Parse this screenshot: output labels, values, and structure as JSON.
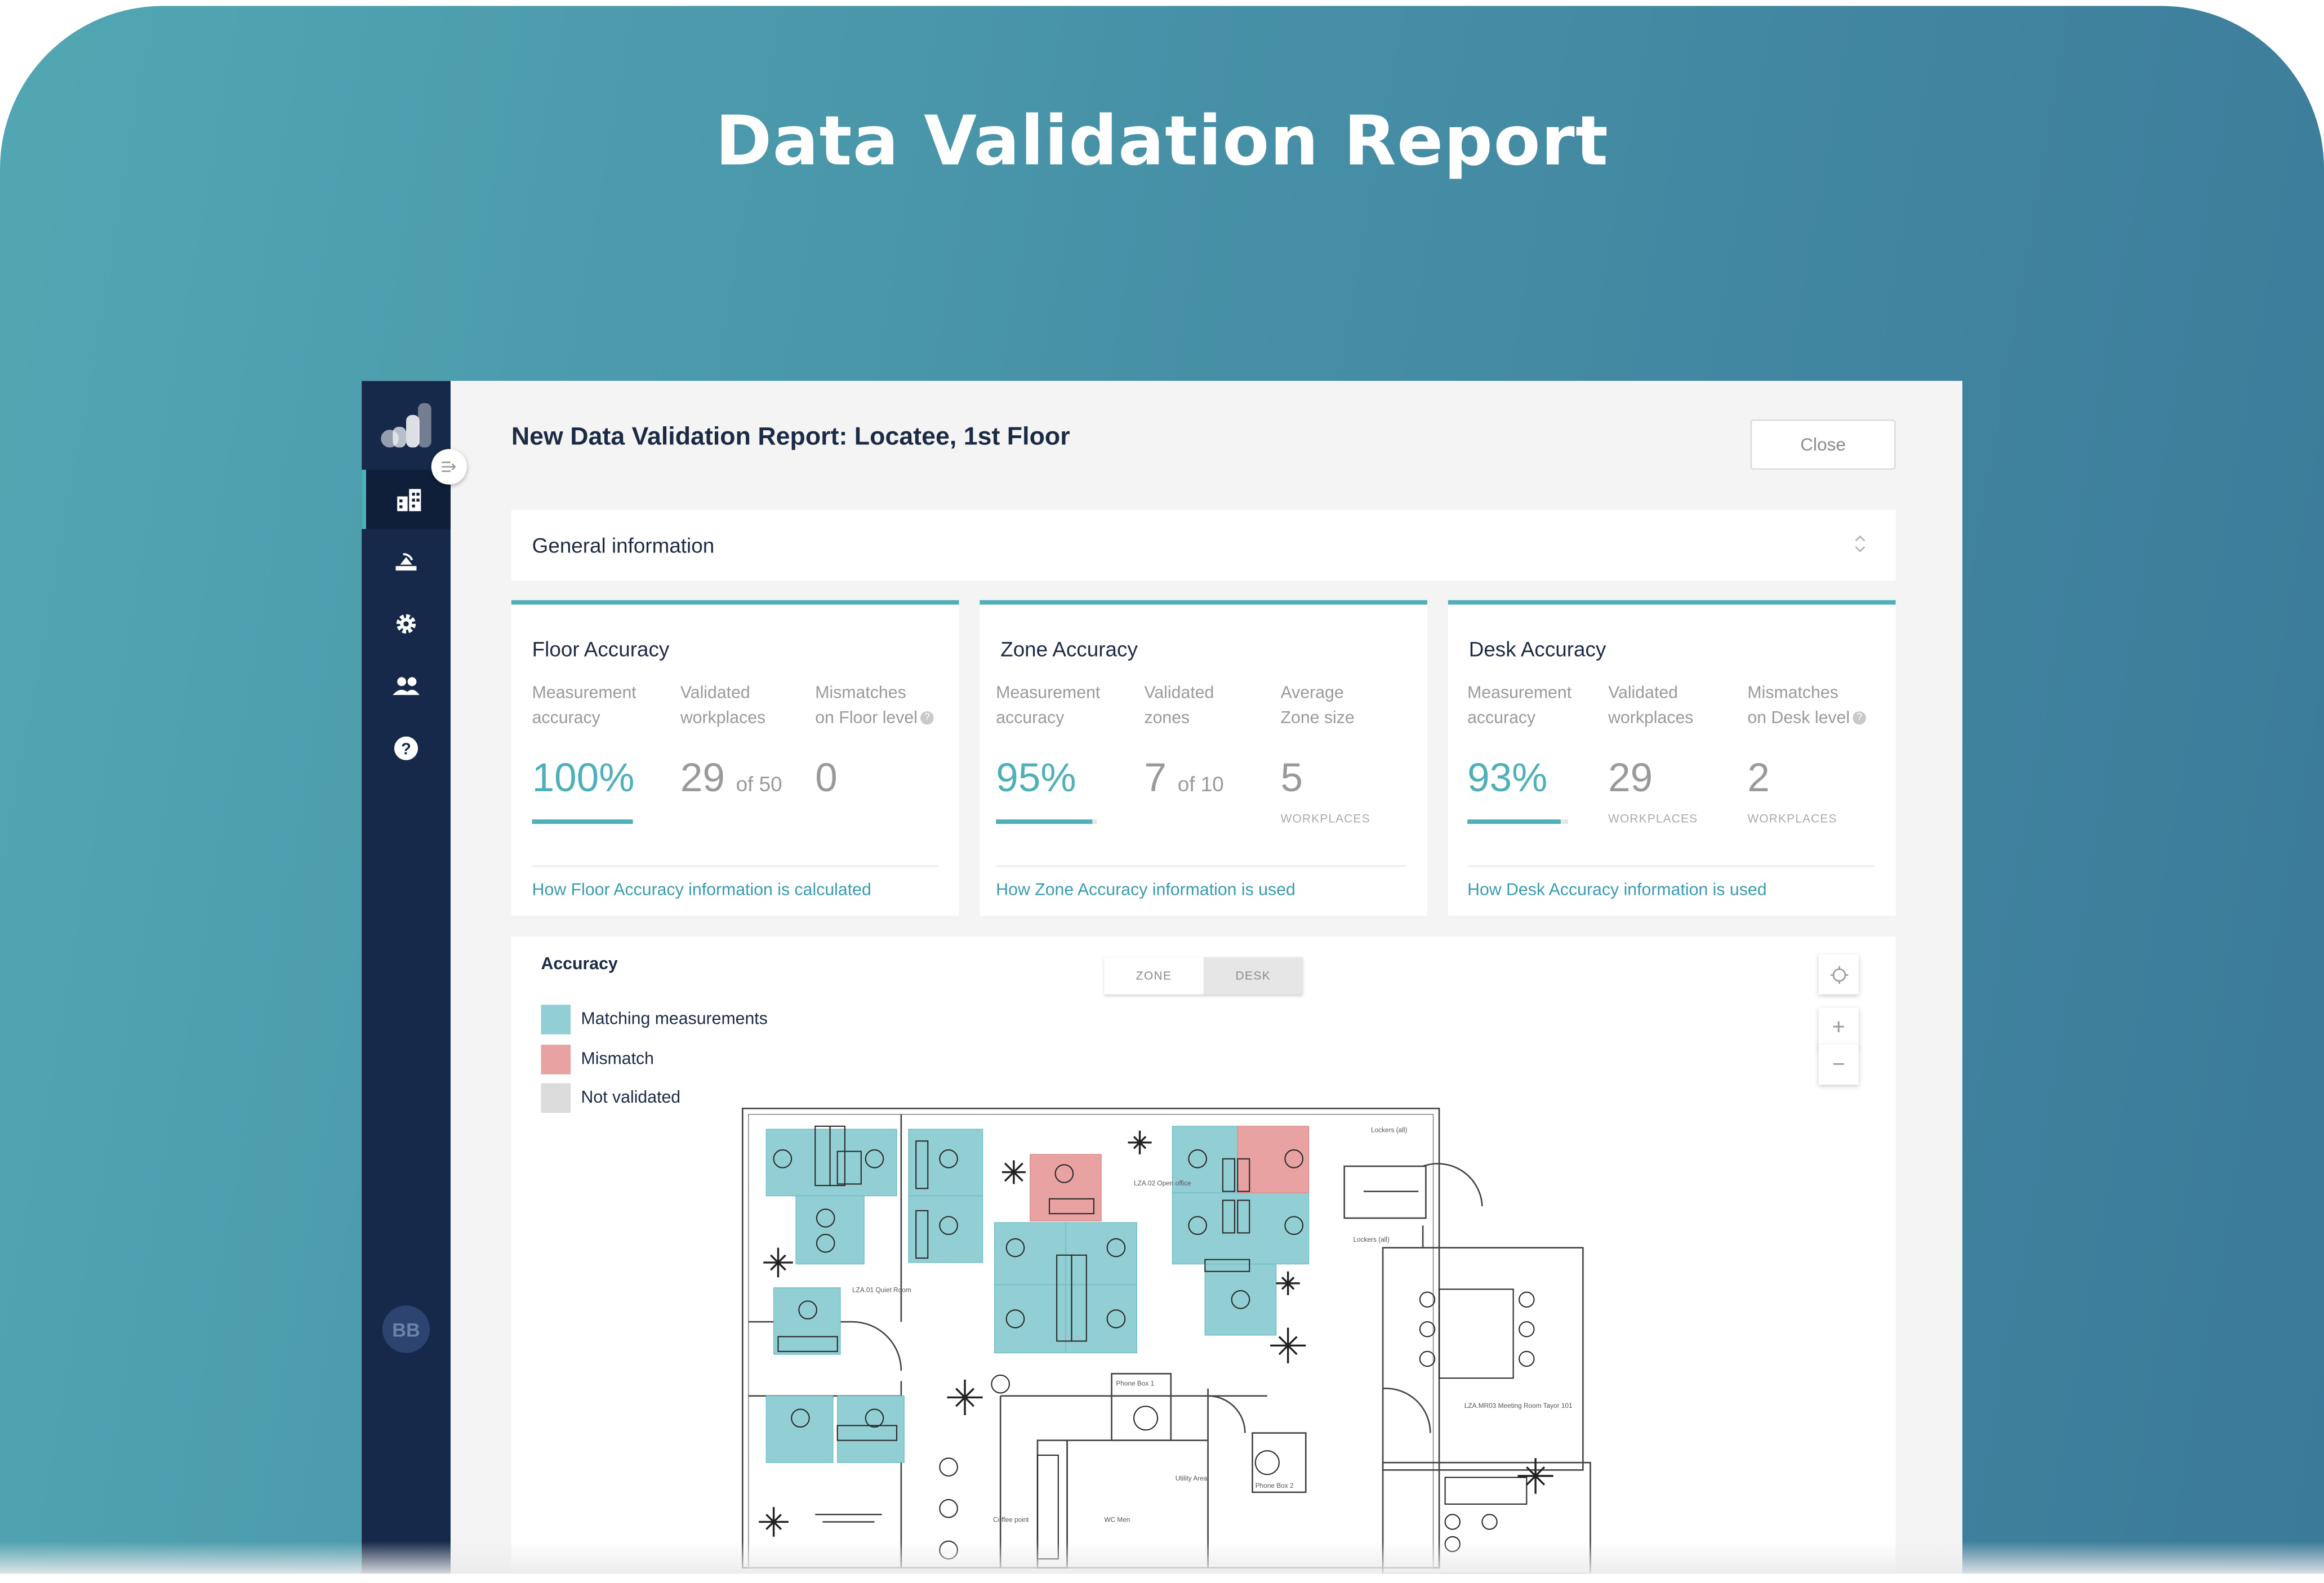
{
  "hero": {
    "title": "Data Validation Report"
  },
  "app": {
    "sidebar": {
      "items": [
        {
          "icon": "building-report-icon",
          "active": true
        },
        {
          "icon": "sensor-icon",
          "active": false
        },
        {
          "icon": "gear-icon",
          "active": false
        },
        {
          "icon": "users-icon",
          "active": false
        },
        {
          "icon": "help-icon",
          "active": false
        }
      ],
      "avatar_initials": "BB"
    },
    "title": "New Data Validation Report: Locatee, 1st Floor",
    "close_label": "Close",
    "general_info_label": "General information",
    "cards": [
      {
        "title": "Floor Accuracy",
        "metrics": [
          {
            "label1": "Measurement",
            "label2": "accuracy",
            "value": "100%",
            "progress": 1.0
          },
          {
            "label1": "Validated",
            "label2": "workplaces",
            "value": "29",
            "suffix": "of 50"
          },
          {
            "label1": "Mismatches",
            "label2": "on Floor level",
            "value": "0"
          }
        ],
        "link": "How Floor Accuracy information is calculated"
      },
      {
        "title": "Zone Accuracy",
        "metrics": [
          {
            "label1": "Measurement",
            "label2": "accuracy",
            "value": "95%",
            "progress": 0.95
          },
          {
            "label1": "Validated",
            "label2": "zones",
            "value": "7",
            "suffix": "of 10"
          },
          {
            "label1": "Average",
            "label2": "Zone size",
            "value": "5",
            "unit": "WORKPLACES"
          }
        ],
        "link": "How Zone Accuracy information is used"
      },
      {
        "title": "Desk Accuracy",
        "metrics": [
          {
            "label1": "Measurement",
            "label2": "accuracy",
            "value": "93%",
            "progress": 0.93
          },
          {
            "label1": "Validated",
            "label2": "workplaces",
            "value": "29",
            "unit": "WORKPLACES"
          },
          {
            "label1": "Mismatches",
            "label2": "on Desk level",
            "value": "2",
            "unit": "WORKPLACES"
          }
        ],
        "link": "How Desk Accuracy information is used"
      }
    ],
    "map": {
      "title": "Accuracy",
      "legend": [
        {
          "label": "Matching measurements",
          "color": "#92cfd4"
        },
        {
          "label": "Mismatch",
          "color": "#e8a2a2"
        },
        {
          "label": "Not validated",
          "color": "#dcdcdc"
        }
      ],
      "toggle": {
        "zone": "ZONE",
        "desk": "DESK",
        "selected": "desk"
      },
      "controls": {
        "locate": "locate-icon",
        "zoom_in": "+",
        "zoom_out": "−"
      },
      "room_labels": {
        "open_office": "LZA.02 Open office",
        "quiet_room": "LZA.01 Quiet Room",
        "lockers_a": "Lockers (all)",
        "lockers_b": "Lockers (all)",
        "meeting_room": "LZA.MR03 Meeting Room Tayor 101",
        "phone_box_1": "Phone Box 1",
        "phone_box_2": "Phone Box 2",
        "utility": "Utility Area",
        "coffee": "Coffee point",
        "wc": "WC Men"
      }
    }
  }
}
